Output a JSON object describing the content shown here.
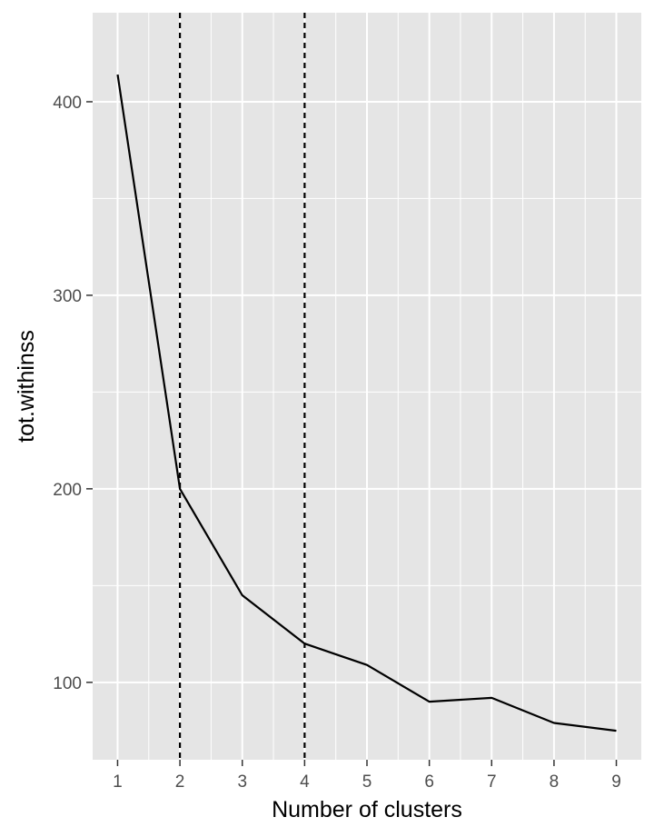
{
  "chart_data": {
    "type": "line",
    "xlabel": "Number of clusters",
    "ylabel": "tot.withinss",
    "x": [
      1,
      2,
      3,
      4,
      5,
      6,
      7,
      8,
      9
    ],
    "y": [
      414,
      200,
      145,
      120,
      109,
      90,
      92,
      79,
      75
    ],
    "xlim": [
      0.6,
      9.4
    ],
    "ylim": [
      60,
      446
    ],
    "x_ticks": [
      "1",
      "2",
      "3",
      "4",
      "5",
      "6",
      "7",
      "8",
      "9"
    ],
    "y_ticks": [
      "100",
      "200",
      "300",
      "400"
    ],
    "vlines": [
      2,
      4
    ],
    "vline_style": "dashed",
    "grid": true,
    "panel_background": "#E5E5E5",
    "grid_color": "#FFFFFF",
    "line_color": "#000000"
  }
}
